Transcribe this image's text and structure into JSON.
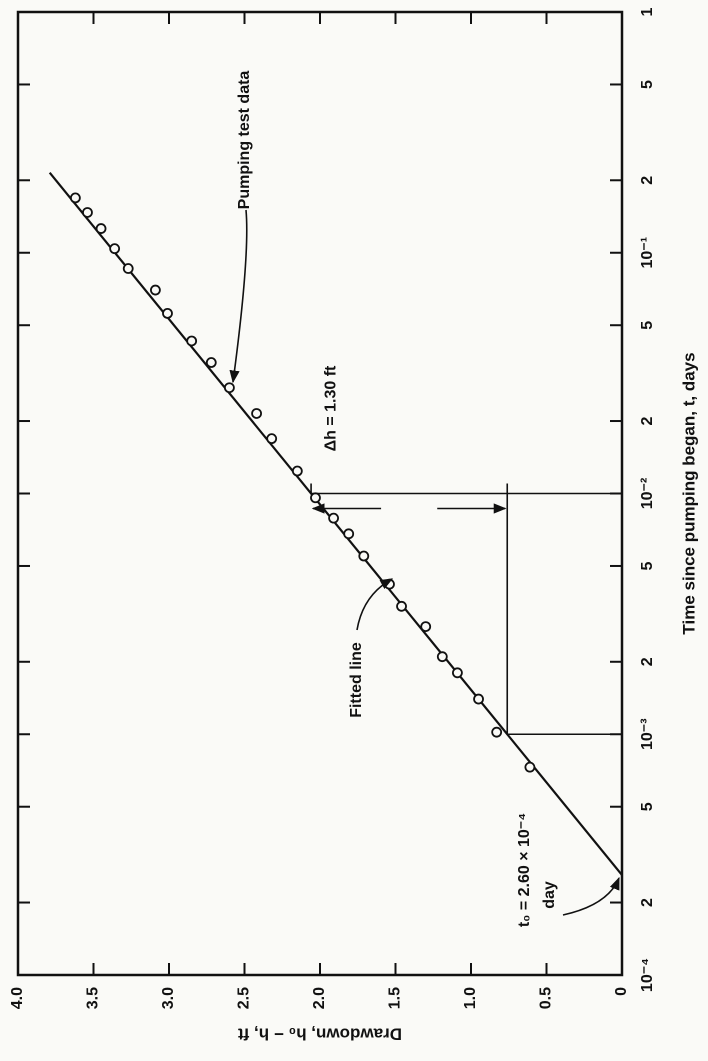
{
  "chart_data": {
    "type": "scatter",
    "xlabel": "Time since pumping began, t, days",
    "ylabel": "Drawdown, h₀ − h, ft",
    "xscale": "log",
    "xlim": [
      0.0001,
      1
    ],
    "ylim": [
      0,
      4
    ],
    "xticks": [
      {
        "value": 0.0001,
        "label": "10⁻⁴"
      },
      {
        "value": 0.0002,
        "label": "2"
      },
      {
        "value": 0.0005,
        "label": "5"
      },
      {
        "value": 0.001,
        "label": "10⁻³"
      },
      {
        "value": 0.002,
        "label": "2"
      },
      {
        "value": 0.005,
        "label": "5"
      },
      {
        "value": 0.01,
        "label": "10⁻²"
      },
      {
        "value": 0.02,
        "label": "2"
      },
      {
        "value": 0.05,
        "label": "5"
      },
      {
        "value": 0.1,
        "label": "10⁻¹"
      },
      {
        "value": 0.2,
        "label": "2"
      },
      {
        "value": 0.5,
        "label": "5"
      },
      1
    ],
    "yticks": [
      0,
      0.5,
      {
        "value": 1,
        "label": "1.0"
      },
      1.5,
      {
        "value": 2,
        "label": "2.0"
      },
      2.5,
      {
        "value": 3,
        "label": "3.0"
      },
      3.5,
      {
        "value": 4,
        "label": "4.0"
      }
    ],
    "series": [
      {
        "name": "Pumping test data",
        "color": "#111111",
        "style": "markers",
        "x": [
          0.169,
          0.147,
          0.126,
          0.104,
          0.086,
          0.07,
          0.056,
          0.043,
          0.035,
          0.0275,
          0.0215,
          0.0169,
          0.0124,
          0.0096,
          0.0079,
          0.0068,
          0.0055,
          0.0042,
          0.0034,
          0.0028,
          0.0021,
          0.0018,
          0.0014,
          0.00102,
          0.00073
        ],
        "values": [
          3.62,
          3.54,
          3.45,
          3.36,
          3.27,
          3.09,
          3.01,
          2.85,
          2.72,
          2.6,
          2.42,
          2.32,
          2.15,
          2.03,
          1.91,
          1.81,
          1.71,
          1.54,
          1.46,
          1.3,
          1.19,
          1.09,
          0.95,
          0.83,
          0.61
        ]
      },
      {
        "name": "Fitted line",
        "color": "#111111",
        "style": "line",
        "x": [
          0.00026,
          0.215
        ],
        "values": [
          0,
          3.79
        ]
      }
    ],
    "annotations": {
      "delta_h": "Δh = 1.30 ft",
      "t0": "t₀ = 2.60 × 10⁻⁴",
      "t0_unit": "day"
    }
  }
}
